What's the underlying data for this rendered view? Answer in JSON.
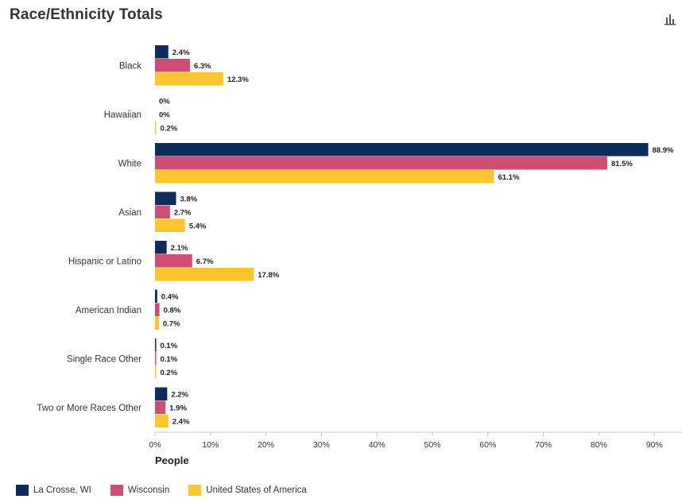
{
  "title": "Race/Ethnicity Totals",
  "menu_icon": "bar-chart-menu-icon",
  "chart_data": {
    "type": "bar",
    "orientation": "horizontal",
    "categories": [
      "Black",
      "Hawaiian",
      "White",
      "Asian",
      "Hispanic or Latino",
      "American Indian",
      "Single Race Other",
      "Two or More Races Other"
    ],
    "series": [
      {
        "name": "La Crosse, WI",
        "color": "#0d2b5b",
        "values": [
          2.4,
          0,
          88.9,
          3.8,
          2.1,
          0.4,
          0.1,
          2.2
        ],
        "labels": [
          "2.4%",
          "0%",
          "88.9%",
          "3.8%",
          "2.1%",
          "0.4%",
          "0.1%",
          "2.2%"
        ]
      },
      {
        "name": "Wisconsin",
        "color": "#cf4c72",
        "values": [
          6.3,
          0,
          81.5,
          2.7,
          6.7,
          0.8,
          0.1,
          1.9
        ],
        "labels": [
          "6.3%",
          "0%",
          "81.5%",
          "2.7%",
          "6.7%",
          "0.8%",
          "0.1%",
          "1.9%"
        ]
      },
      {
        "name": "United States of America",
        "color": "#ffc52f",
        "values": [
          12.3,
          0.2,
          61.1,
          5.4,
          17.8,
          0.7,
          0.2,
          2.4
        ],
        "labels": [
          "12.3%",
          "0.2%",
          "61.1%",
          "5.4%",
          "17.8%",
          "0.7%",
          "0.2%",
          "2.4%"
        ]
      }
    ],
    "xlabel": "People",
    "xlim": [
      0,
      94
    ],
    "ticks": [
      0,
      10,
      20,
      30,
      40,
      50,
      60,
      70,
      80,
      90
    ],
    "tick_labels": [
      "0%",
      "10%",
      "20%",
      "30%",
      "40%",
      "50%",
      "60%",
      "70%",
      "80%",
      "90%"
    ],
    "grid": false,
    "legend_position": "bottom-left"
  }
}
